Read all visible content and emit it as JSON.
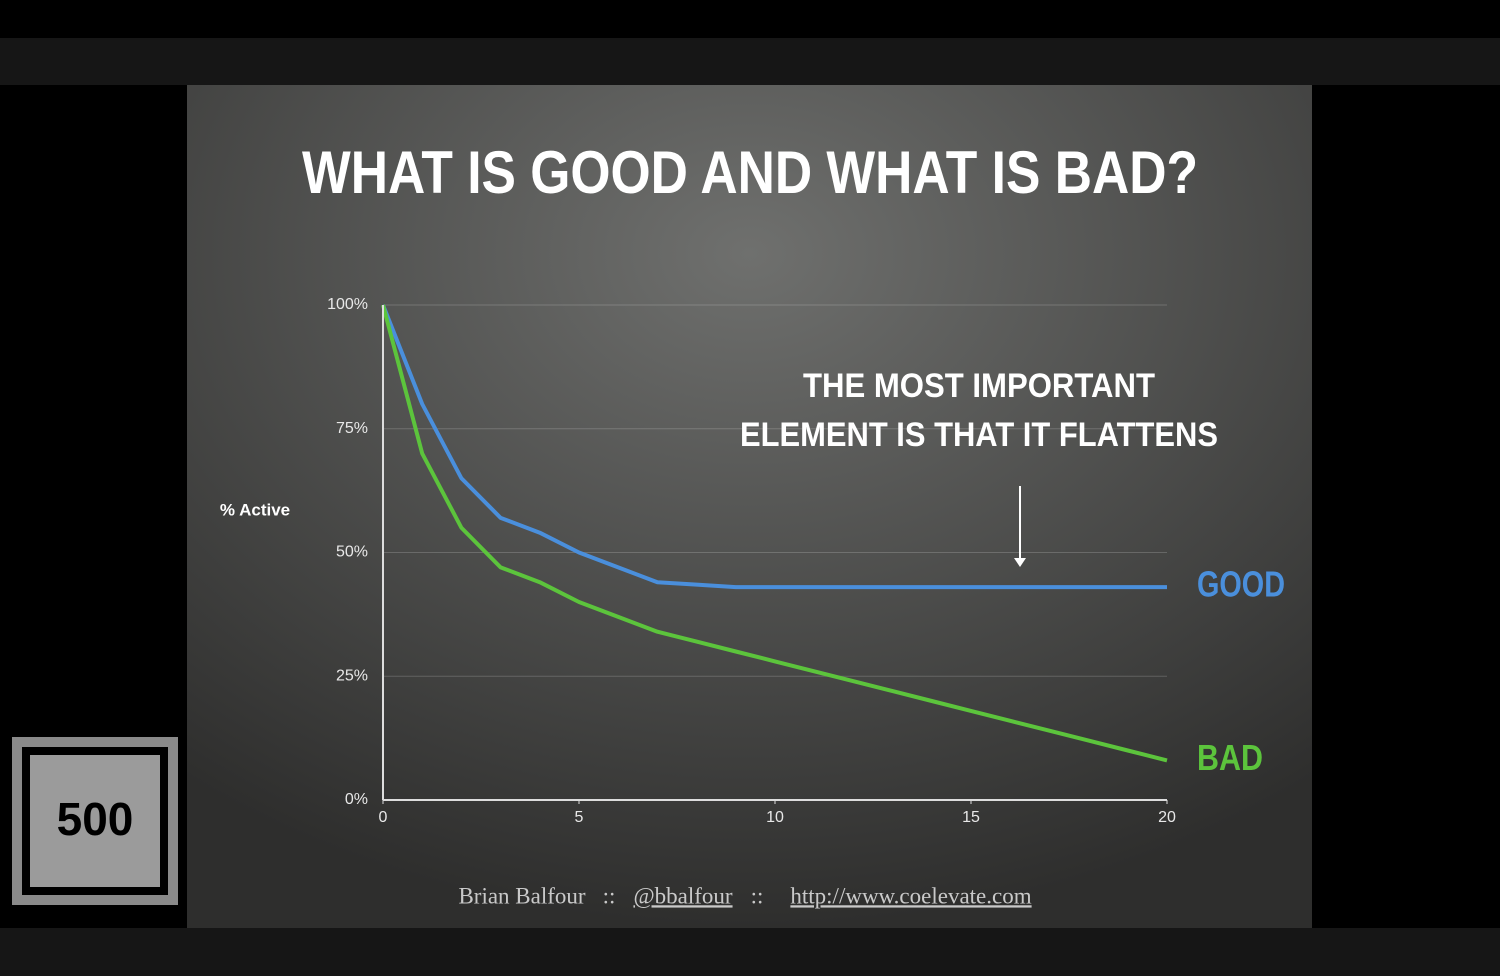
{
  "chart_data": {
    "type": "line",
    "title": "WHAT IS GOOD AND WHAT IS BAD?",
    "annotation": [
      "THE MOST IMPORTANT",
      "ELEMENT IS THAT IT FLATTENS"
    ],
    "y_label": "% Active",
    "x": [
      0,
      1,
      2,
      3,
      4,
      5,
      6,
      7,
      8,
      9,
      10,
      11,
      12,
      13,
      14,
      15,
      16,
      17,
      18,
      19,
      20
    ],
    "series": [
      {
        "name": "GOOD",
        "color": "#4a8fdc",
        "values": [
          100,
          80,
          65,
          57,
          54,
          50,
          47,
          44,
          43.5,
          43,
          43,
          43,
          43,
          43,
          43,
          43,
          43,
          43,
          43,
          43,
          43
        ]
      },
      {
        "name": "BAD",
        "color": "#5cc43c",
        "values": [
          100,
          70,
          55,
          47,
          44,
          40,
          37,
          34,
          32,
          30,
          28,
          26,
          24,
          22,
          20,
          18,
          16,
          14,
          12,
          10,
          8
        ]
      }
    ],
    "xlim": [
      0,
      20
    ],
    "xticks": [
      0,
      5,
      10,
      15,
      20
    ],
    "ylim": [
      0,
      100
    ],
    "yticks": [
      {
        "value": 0,
        "label": "0%"
      },
      {
        "value": 25,
        "label": "25%"
      },
      {
        "value": 50,
        "label": "50%"
      },
      {
        "value": 75,
        "label": "75%"
      },
      {
        "value": 100,
        "label": "100%"
      }
    ],
    "grid": true
  },
  "footer": {
    "author": "Brian Balfour",
    "separator_1": "::",
    "handle": "@bbalfour",
    "separator_2": "::",
    "url": "http://www.coelevate.com"
  },
  "logo": {
    "text": "500"
  }
}
